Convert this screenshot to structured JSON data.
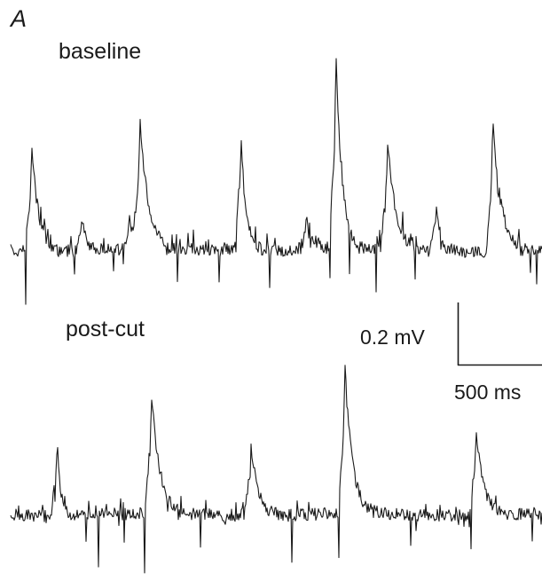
{
  "figure": {
    "panel_letter": "A",
    "trace_color": "#1a1a1a",
    "background": "#ffffff"
  },
  "traces": {
    "baseline": {
      "label": "baseline"
    },
    "postcut": {
      "label": "post-cut"
    }
  },
  "scale_bar": {
    "voltage_label": "0.2 mV",
    "time_label": "500 ms"
  }
}
